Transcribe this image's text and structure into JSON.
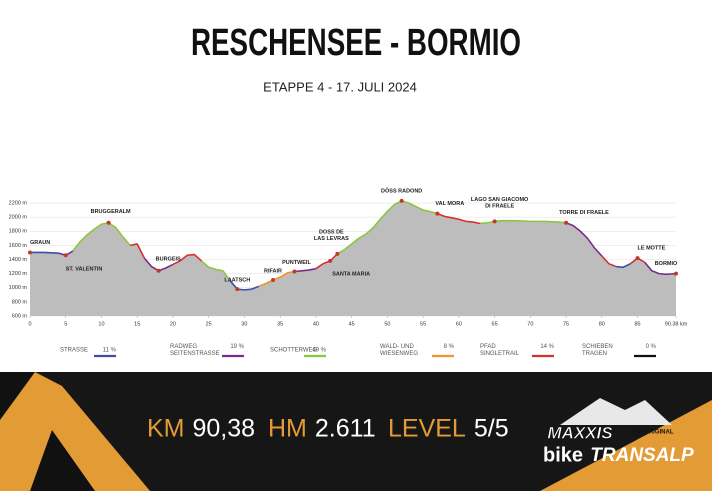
{
  "chart_data": {
    "type": "area",
    "title": "RESCHENSEE - BORMIO",
    "subtitle": "ETAPPE 4 - 17. JULI 2024",
    "x": [
      0,
      2,
      4,
      5,
      6,
      7,
      8,
      9,
      10,
      11,
      12,
      13,
      14,
      15,
      16,
      17,
      18,
      19,
      20,
      21,
      22,
      23,
      24,
      25,
      26,
      27,
      28,
      29,
      30,
      31,
      32,
      33,
      34,
      35,
      36,
      37,
      38,
      39,
      40,
      41,
      42,
      43,
      44,
      45,
      46,
      47,
      48,
      49,
      50,
      51,
      52,
      53,
      54,
      55,
      56,
      57,
      58,
      59,
      60,
      61,
      62,
      63,
      64,
      65,
      66,
      68,
      70,
      72,
      74,
      75,
      76,
      77,
      78,
      79,
      80,
      81,
      82,
      83,
      84,
      85,
      86,
      87,
      88,
      89,
      90.38
    ],
    "values": [
      1500,
      1500,
      1490,
      1460,
      1520,
      1650,
      1750,
      1830,
      1900,
      1920,
      1850,
      1720,
      1600,
      1620,
      1420,
      1300,
      1240,
      1280,
      1330,
      1380,
      1460,
      1470,
      1380,
      1290,
      1260,
      1240,
      1100,
      980,
      970,
      980,
      1020,
      1060,
      1110,
      1150,
      1210,
      1230,
      1240,
      1250,
      1270,
      1340,
      1380,
      1480,
      1540,
      1620,
      1700,
      1760,
      1850,
      1970,
      2080,
      2180,
      2230,
      2200,
      2150,
      2100,
      2080,
      2050,
      2010,
      1990,
      1970,
      1940,
      1930,
      1910,
      1920,
      1940,
      1950,
      1950,
      1940,
      1940,
      1930,
      1920,
      1880,
      1800,
      1700,
      1560,
      1450,
      1340,
      1300,
      1290,
      1340,
      1420,
      1360,
      1240,
      1200,
      1190,
      1200
    ],
    "fill": "#bdbdbd",
    "xlim": [
      0,
      90.38
    ],
    "ylim": [
      600,
      2200
    ],
    "xticks": [
      0,
      5,
      10,
      15,
      20,
      25,
      30,
      35,
      40,
      45,
      50,
      55,
      60,
      65,
      70,
      75,
      80,
      85,
      {
        "value": 90.38,
        "label": "90.38 km"
      }
    ],
    "yticks": [
      {
        "value": 600,
        "label": "600 m"
      },
      {
        "value": 800,
        "label": "800 m"
      },
      {
        "value": 1000,
        "label": "1000 m"
      },
      {
        "value": 1200,
        "label": "1200 m"
      },
      {
        "value": 1400,
        "label": "1400 m"
      },
      {
        "value": 1600,
        "label": "1600 m"
      },
      {
        "value": 1800,
        "label": "1800 m"
      },
      {
        "value": 2000,
        "label": "2000 m"
      },
      {
        "value": 2200,
        "label": "2200 m"
      }
    ],
    "grid": true,
    "waypoints": [
      {
        "lines": [
          "GRAUN"
        ],
        "km": 0,
        "elevation": 1500
      },
      {
        "lines": [
          "ST. VALENTIN"
        ],
        "km": 5,
        "elevation": 1460
      },
      {
        "lines": [
          "BRUGGERALM"
        ],
        "km": 11,
        "elevation": 1920
      },
      {
        "lines": [
          "BURGEIS"
        ],
        "km": 18,
        "elevation": 1240
      },
      {
        "lines": [
          "LAATSCH"
        ],
        "km": 29,
        "elevation": 980
      },
      {
        "lines": [
          "RIFAIR"
        ],
        "km": 34,
        "elevation": 1110
      },
      {
        "lines": [
          "PUNTWEIL"
        ],
        "km": 37,
        "elevation": 1230
      },
      {
        "lines": [
          "SANTA MARIA"
        ],
        "km": 42,
        "elevation": 1380
      },
      {
        "lines": [
          "DOSS DE",
          "LAS LEVRAS"
        ],
        "km": 43,
        "elevation": 1480
      },
      {
        "lines": [
          "DÖSS RADOND"
        ],
        "km": 52,
        "elevation": 2230
      },
      {
        "lines": [
          "VAL MORA"
        ],
        "km": 57,
        "elevation": 2050
      },
      {
        "lines": [
          "LAGO SAN GIACOMO",
          "DI FRAELE"
        ],
        "km": 65,
        "elevation": 1940
      },
      {
        "lines": [
          "TORRE DI FRAELE"
        ],
        "km": 75,
        "elevation": 1920
      },
      {
        "lines": [
          "LE MOTTE"
        ],
        "km": 85,
        "elevation": 1420
      },
      {
        "lines": [
          "BORMIO"
        ],
        "km": 90.38,
        "elevation": 1200
      }
    ],
    "marker_color": "#c0392b",
    "legend": [
      {
        "lines": [
          "STRASSE"
        ],
        "share": 11,
        "share_label": "11 %",
        "color": "#3b4fa8",
        "runs": [
          [
            0,
            4
          ],
          [
            28,
            32
          ],
          [
            82,
            84
          ]
        ]
      },
      {
        "lines": [
          "RADWEG",
          "SEITENSTRASSE"
        ],
        "share": 19,
        "share_label": "19 %",
        "color": "#7b2d8b",
        "runs": [
          [
            4,
            6
          ],
          [
            16,
            20
          ],
          [
            37,
            40
          ],
          [
            75,
            80
          ],
          [
            86,
            90.38
          ]
        ]
      },
      {
        "lines": [
          "SCHOTTERWEG"
        ],
        "share": 49,
        "share_label": "49 %",
        "color": "#8cc63f",
        "runs": [
          [
            6,
            14
          ],
          [
            24,
            28
          ],
          [
            43,
            57
          ],
          [
            63,
            75
          ]
        ]
      },
      {
        "lines": [
          "WALD- UND",
          "WIESENWEG"
        ],
        "share": 8,
        "share_label": "8 %",
        "color": "#f0932b",
        "runs": [
          [
            32,
            37
          ]
        ]
      },
      {
        "lines": [
          "PFAD",
          "SINGLETRAIL"
        ],
        "share": 14,
        "share_label": "14 %",
        "color": "#d63031",
        "runs": [
          [
            14,
            16
          ],
          [
            20,
            24
          ],
          [
            40,
            43
          ],
          [
            57,
            63
          ],
          [
            80,
            82
          ],
          [
            84,
            86
          ]
        ]
      },
      {
        "lines": [
          "SCHIEBEN",
          "TRAGEN"
        ],
        "share": 0,
        "share_label": "0 %",
        "color": "#111111",
        "runs": []
      }
    ]
  },
  "stats": [
    {
      "label": "KM",
      "value": 90.38,
      "value_label": "90,38"
    },
    {
      "label": "HM",
      "value": 2611,
      "value_label": "2.611"
    },
    {
      "label": "LEVEL",
      "value_label": "5/5"
    }
  ],
  "logo": {
    "brand": "MAXXIS",
    "tagline": "THE ORIGINAL",
    "word1": "bike",
    "word2": "TRANSALP"
  }
}
